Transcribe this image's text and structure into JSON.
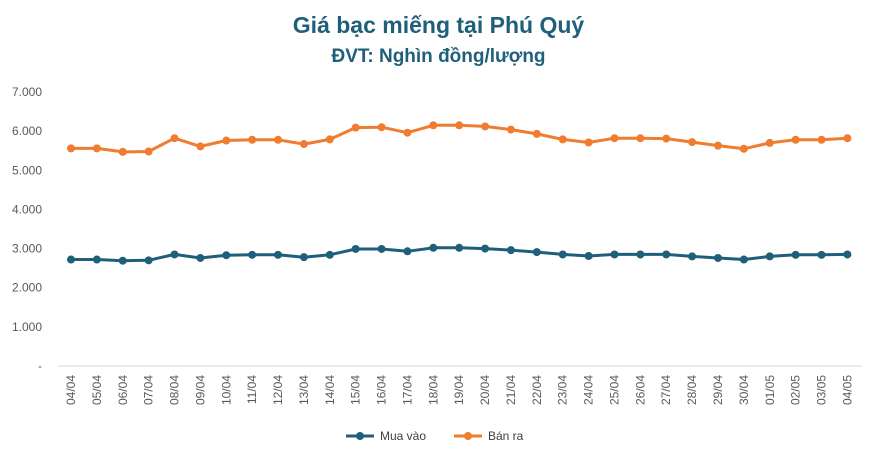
{
  "chart_data": {
    "type": "line",
    "title": "Giá bạc miếng tại Phú Quý",
    "subtitle": "ĐVT: Nghìn đồng/lượng",
    "xlabel": "",
    "ylabel": "",
    "categories": [
      "04/04",
      "05/04",
      "06/04",
      "07/04",
      "08/04",
      "09/04",
      "10/04",
      "11/04",
      "12/04",
      "13/04",
      "14/04",
      "15/04",
      "16/04",
      "17/04",
      "18/04",
      "19/04",
      "20/04",
      "21/04",
      "22/04",
      "23/04",
      "24/04",
      "25/04",
      "26/04",
      "27/04",
      "28/04",
      "29/04",
      "30/04",
      "01/05",
      "02/05",
      "03/05",
      "04/05"
    ],
    "y_ticks": [
      "-",
      "1.000",
      "2.000",
      "3.000",
      "4.000",
      "5.000",
      "6.000",
      "7.000"
    ],
    "ylim": [
      0,
      7000
    ],
    "grid": false,
    "legend_position": "bottom",
    "series": [
      {
        "name": "Mua vào",
        "color": "#1f5f7a",
        "values": [
          2720,
          2720,
          2690,
          2700,
          2850,
          2760,
          2830,
          2840,
          2840,
          2780,
          2840,
          2990,
          2990,
          2930,
          3020,
          3020,
          3000,
          2960,
          2910,
          2850,
          2810,
          2850,
          2850,
          2850,
          2800,
          2760,
          2720,
          2800,
          2840,
          2840,
          2850
        ]
      },
      {
        "name": "Bán ra",
        "color": "#f07d2f",
        "values": [
          5560,
          5560,
          5470,
          5480,
          5820,
          5610,
          5760,
          5780,
          5780,
          5670,
          5790,
          6090,
          6100,
          5960,
          6150,
          6150,
          6120,
          6040,
          5930,
          5790,
          5710,
          5820,
          5820,
          5810,
          5720,
          5630,
          5550,
          5700,
          5780,
          5780,
          5820
        ]
      }
    ]
  }
}
